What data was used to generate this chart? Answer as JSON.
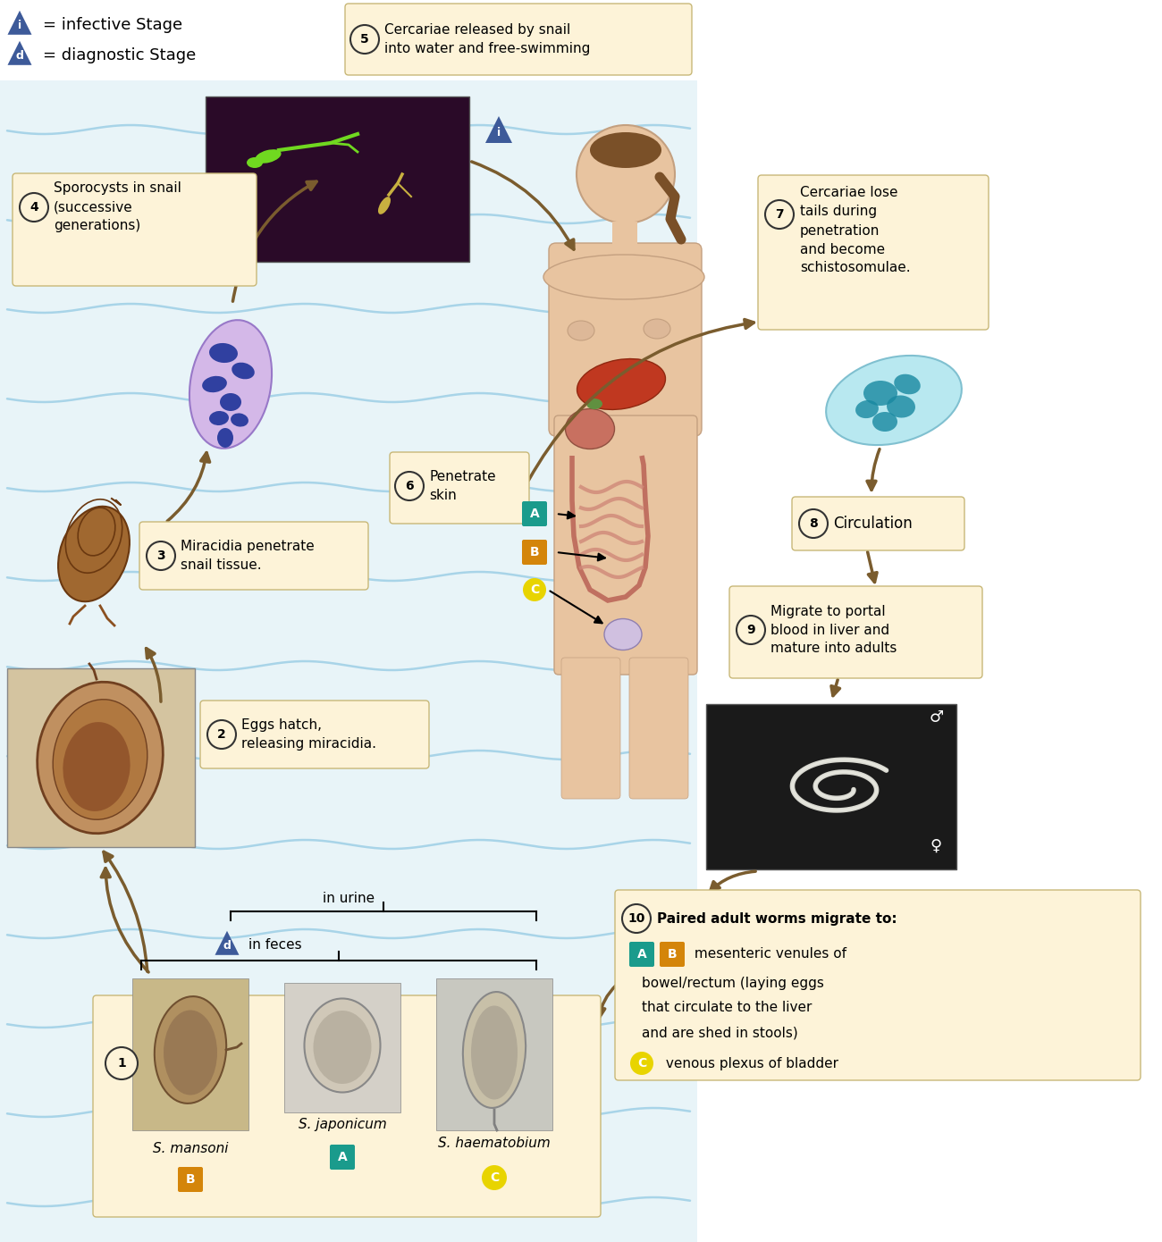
{
  "background_color": "#ffffff",
  "water_bg": "#e8f4f8",
  "wave_color": "#a8d4e8",
  "box_bg": "#fdf3d8",
  "box_border": "#c8b878",
  "arrow_color": "#7a5c2e",
  "number_bg": "#fdf3d8",
  "number_border": "#333333",
  "triangle_color": "#3d5a99",
  "legend_i": "= infective Stage",
  "legend_d": "= diagnostic Stage",
  "step5_text": "Cercariae released by snail\ninto water and free-swimming",
  "step4_text": "Sporocysts in snail\n(successive\ngenerations)",
  "step3_text": "Miracidia penetrate\nsnail tissue.",
  "step2_text": "Eggs hatch,\nreleasing miracidia.",
  "step6_text": "Penetrate\nskin",
  "step7_text": "Cercariae lose\ntails during\npenetration\nand become\nschistosomulae.",
  "step8_text": "Circulation",
  "step9_text": "Migrate to portal\nblood in liver and\nmature into adults",
  "step10_text": "Paired adult worms migrate to:",
  "in_urine": "in urine",
  "in_feces": "in feces",
  "s_mansoni": "S. mansoni",
  "s_japonicum": "S. japonicum",
  "s_haematobium": "S. haematobium",
  "badge_A_color": "#1a9b8c",
  "badge_B_color": "#d4850a",
  "badge_C_color": "#e8d400",
  "step10_line1": " mesenteric venules of",
  "step10_line2": "bowel/rectum (laying eggs",
  "step10_line3": "that circulate to the liver",
  "step10_line4": "and are shed in stools)",
  "step10_line5": " venous plexus of bladder",
  "male_symbol": "♂",
  "female_symbol": "♀"
}
